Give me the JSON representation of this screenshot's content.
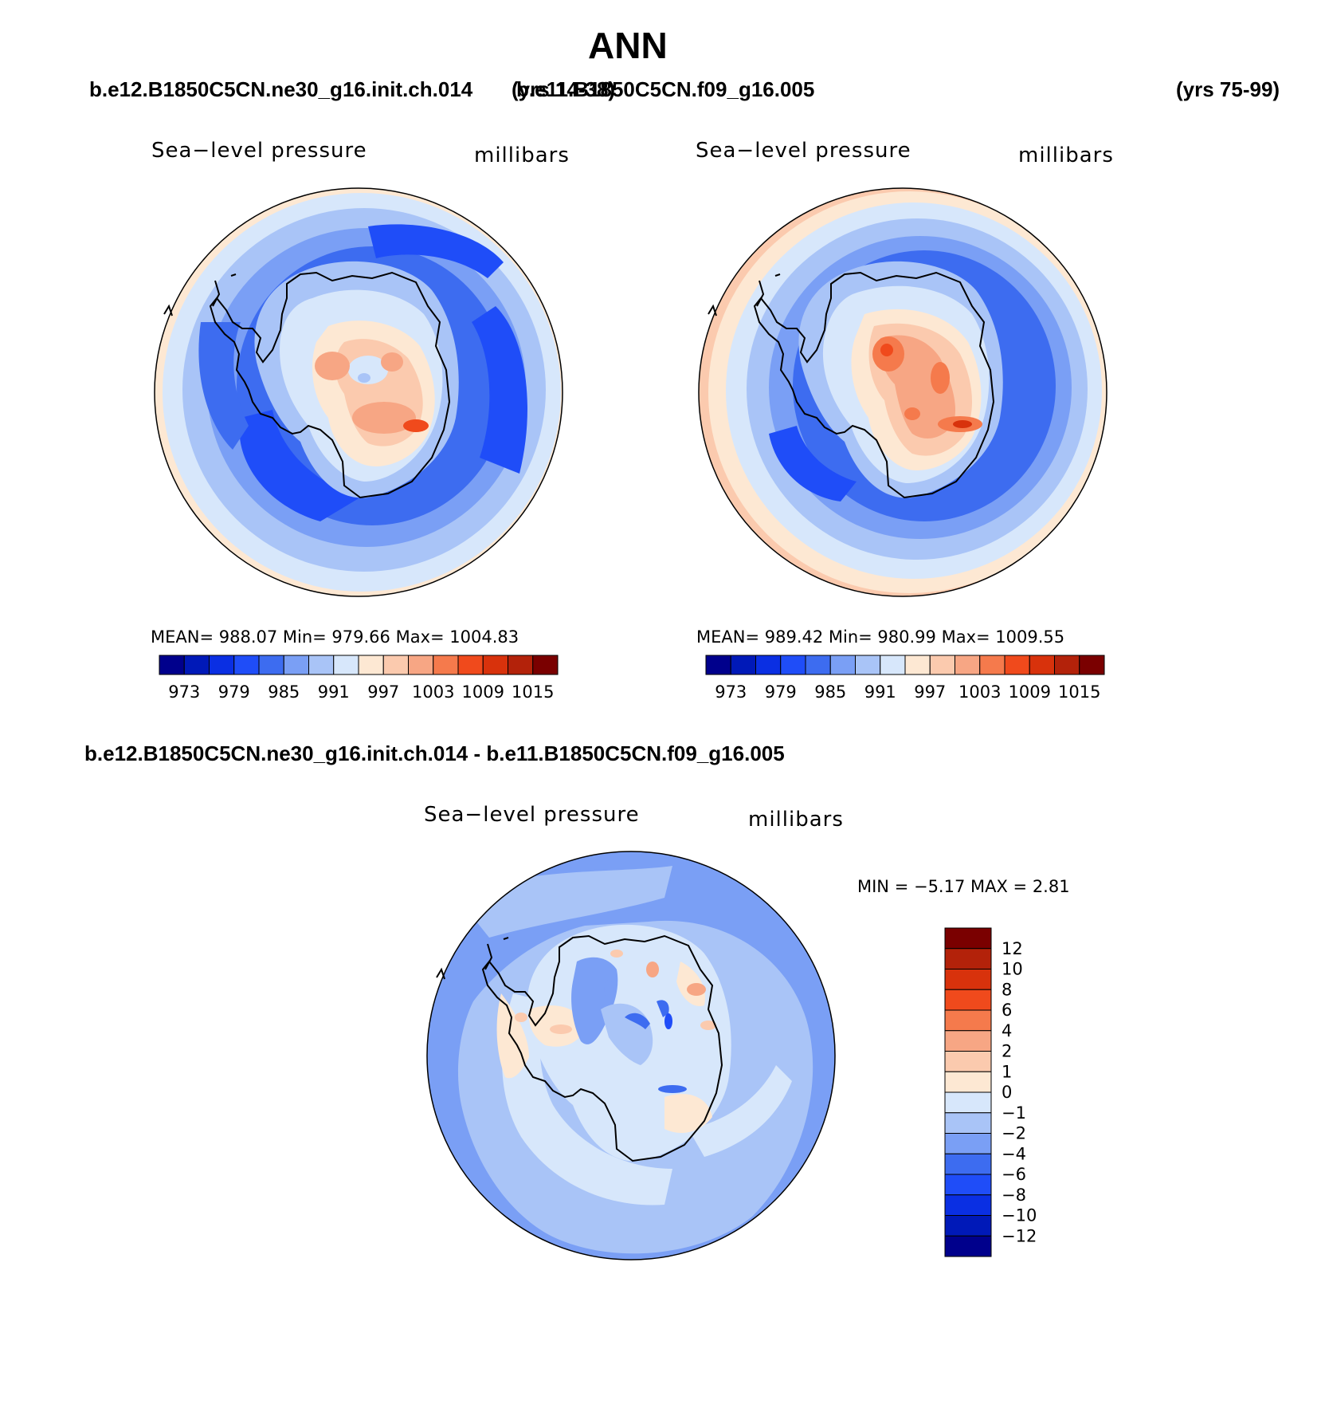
{
  "figure": {
    "title": "ANN",
    "case1": "b.e12.B1850C5CN.ne30_g16.init.ch.014",
    "case1_years": "(yrs 14-38)",
    "case2": "b.e11.B1850C5CN.f09_g16.005",
    "case2_years": "(yrs 75-99)",
    "diff_title": "b.e12.B1850C5CN.ne30_g16.init.ch.014 - b.e11.B1850C5CN.f09_g16.005"
  },
  "panels": [
    {
      "id": "case1",
      "variable": "Sea−level pressure",
      "units": "millibars",
      "stats_text": "MEAN=  988.07    Min=  979.66    Max=  1004.83"
    },
    {
      "id": "case2",
      "variable": "Sea−level pressure",
      "units": "millibars",
      "stats_text": "MEAN=  989.42    Min=  980.99    Max=  1009.55"
    },
    {
      "id": "diff",
      "variable": "Sea−level pressure",
      "units": "millibars",
      "stats_text": "MIN =    −5.17  MAX =     2.81"
    }
  ],
  "colorbars": {
    "absolute": {
      "orientation": "horizontal",
      "colors": [
        "#00008c",
        "#0019b8",
        "#0a2fe3",
        "#1f4df8",
        "#3d6cf0",
        "#7a9ff5",
        "#a9c4f7",
        "#d7e7fb",
        "#fde8d3",
        "#fbcaae",
        "#f7a684",
        "#f57a4c",
        "#f04a1c",
        "#d8320c",
        "#b3220a",
        "#7a0000"
      ],
      "tick_labels": [
        "973",
        "979",
        "985",
        "991",
        "997",
        "1003",
        "1009",
        "1015"
      ]
    },
    "difference": {
      "orientation": "vertical",
      "colors_top_to_bottom": [
        "#7a0000",
        "#b3220a",
        "#d8320c",
        "#f04a1c",
        "#f57a4c",
        "#f7a684",
        "#fbcaae",
        "#fde8d3",
        "#d7e7fb",
        "#a9c4f7",
        "#7a9ff5",
        "#3d6cf0",
        "#1f4df8",
        "#0a2fe3",
        "#0019b8",
        "#00008c"
      ],
      "tick_labels_top_to_bottom": [
        "12",
        "10",
        "8",
        "6",
        "4",
        "2",
        "1",
        "0",
        "−1",
        "−2",
        "−4",
        "−6",
        "−8",
        "−10",
        "−12"
      ]
    }
  },
  "map_palette": {
    "ocean_far": "#fde8d3",
    "ring1": "#d7e7fb",
    "ring2": "#a9c4f7",
    "ring3": "#7a9ff5",
    "ring4": "#3d6cf0",
    "ring5": "#1f4df8",
    "land1": "#d7e7fb",
    "land2": "#fde8d3",
    "land3": "#fbcaae",
    "land4": "#f7a684",
    "land5": "#f57a4c",
    "land6": "#f04a1c"
  }
}
